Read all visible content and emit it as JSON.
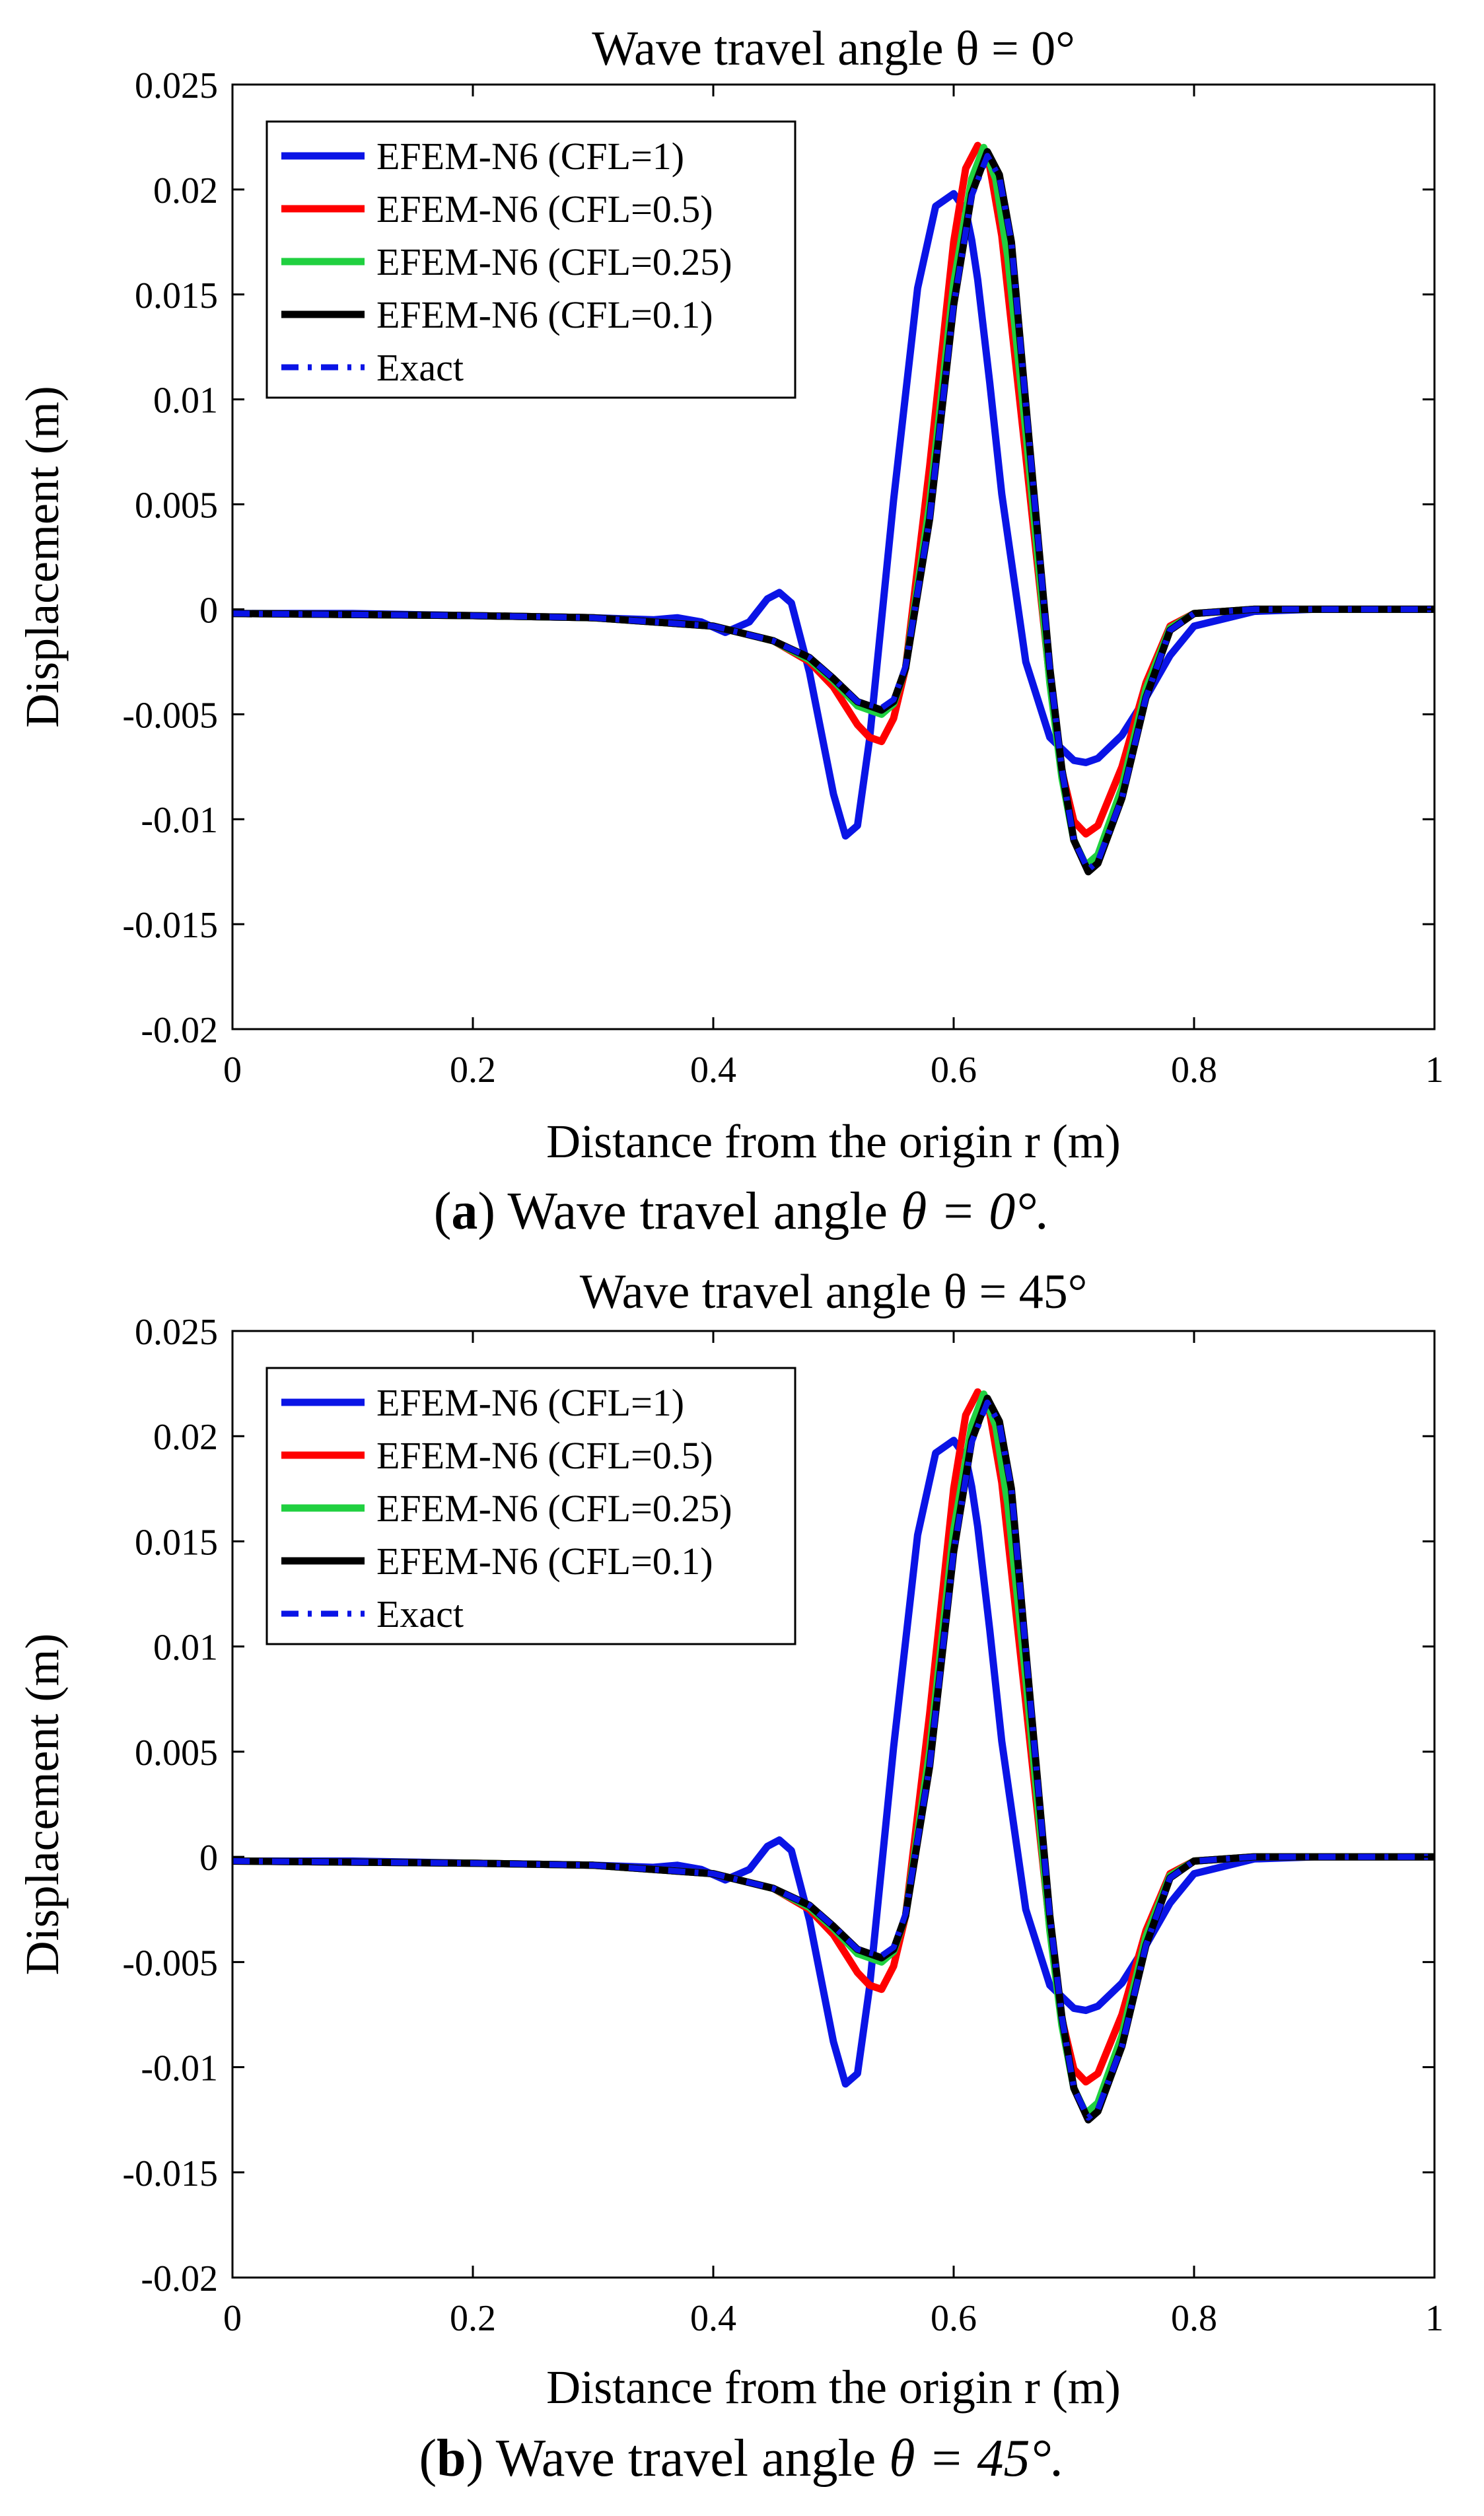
{
  "figure": {
    "captions": [
      {
        "letter": "a",
        "text": "Wave travel angle",
        "formula": "θ = 0°."
      },
      {
        "letter": "b",
        "text": "Wave travel angle",
        "formula": "θ = 45°."
      }
    ]
  },
  "chart_data": [
    {
      "type": "line",
      "title": "Wave travel angle θ = 0°",
      "xlabel": "Distance from the origin r (m)",
      "ylabel": "Displacement (m)",
      "xlim": [
        0,
        1
      ],
      "ylim": [
        -0.02,
        0.025
      ],
      "xticks": [
        0,
        0.2,
        0.4,
        0.6,
        0.8,
        1
      ],
      "xtick_labels": [
        "0",
        "0.2",
        "0.4",
        "0.6",
        "0.8",
        "1"
      ],
      "yticks": [
        -0.02,
        -0.015,
        -0.01,
        -0.005,
        0,
        0.005,
        0.01,
        0.015,
        0.02,
        0.025
      ],
      "ytick_labels": [
        "-0.02",
        "-0.015",
        "-0.01",
        "-0.005",
        "0",
        "0.005",
        "0.01",
        "0.015",
        "0.02",
        "0.025"
      ],
      "legend_position": "top-left",
      "series": [
        {
          "name": "EFEM-N6 (CFL=1)",
          "color": "#0a14e6",
          "style": "solid",
          "x": [
            0,
            0.1,
            0.2,
            0.3,
            0.35,
            0.37,
            0.39,
            0.41,
            0.43,
            0.445,
            0.455,
            0.465,
            0.48,
            0.5,
            0.51,
            0.52,
            0.53,
            0.55,
            0.57,
            0.585,
            0.6,
            0.61,
            0.615,
            0.62,
            0.63,
            0.64,
            0.66,
            0.68,
            0.7,
            0.71,
            0.72,
            0.74,
            0.76,
            0.78,
            0.8,
            0.85,
            0.9,
            1
          ],
          "y": [
            -0.0002,
            -0.0002,
            -0.0003,
            -0.0004,
            -0.0005,
            -0.0004,
            -0.0006,
            -0.0011,
            -0.0006,
            0.0005,
            0.0008,
            0.0003,
            -0.003,
            -0.0088,
            -0.0108,
            -0.0103,
            -0.0062,
            0.0052,
            0.0153,
            0.0192,
            0.0198,
            0.019,
            0.0176,
            0.0157,
            0.0108,
            0.0055,
            -0.0025,
            -0.0061,
            -0.0072,
            -0.0073,
            -0.0071,
            -0.006,
            -0.0042,
            -0.0022,
            -0.0008,
            -0.0001,
            0,
            0
          ]
        },
        {
          "name": "EFEM-N6 (CFL=0.5)",
          "color": "#ff0000",
          "style": "solid",
          "x": [
            0,
            0.2,
            0.3,
            0.4,
            0.45,
            0.48,
            0.5,
            0.52,
            0.53,
            0.54,
            0.55,
            0.56,
            0.58,
            0.6,
            0.61,
            0.62,
            0.63,
            0.64,
            0.66,
            0.68,
            0.69,
            0.7,
            0.71,
            0.72,
            0.74,
            0.76,
            0.78,
            0.8,
            0.85,
            1
          ],
          "y": [
            -0.0002,
            -0.0003,
            -0.0004,
            -0.0008,
            -0.0015,
            -0.0025,
            -0.0037,
            -0.0055,
            -0.0061,
            -0.0063,
            -0.0052,
            -0.0028,
            0.0068,
            0.0175,
            0.021,
            0.0221,
            0.0211,
            0.0178,
            0.0073,
            -0.0034,
            -0.0077,
            -0.0101,
            -0.0107,
            -0.0103,
            -0.0075,
            -0.0035,
            -0.0008,
            -0.0002,
            0,
            0
          ]
        },
        {
          "name": "EFEM-N6 (CFL=0.25)",
          "color": "#20d040",
          "style": "solid",
          "x": [
            0,
            0.2,
            0.3,
            0.4,
            0.45,
            0.48,
            0.5,
            0.52,
            0.54,
            0.55,
            0.56,
            0.58,
            0.6,
            0.615,
            0.625,
            0.635,
            0.645,
            0.66,
            0.68,
            0.69,
            0.7,
            0.71,
            0.72,
            0.74,
            0.76,
            0.78,
            0.8,
            0.85,
            1
          ],
          "y": [
            -0.0002,
            -0.0003,
            -0.0004,
            -0.0008,
            -0.0015,
            -0.0024,
            -0.0034,
            -0.0046,
            -0.005,
            -0.0045,
            -0.0028,
            0.005,
            0.0155,
            0.0205,
            0.022,
            0.0205,
            0.0168,
            0.0085,
            -0.0035,
            -0.008,
            -0.011,
            -0.0122,
            -0.0117,
            -0.0085,
            -0.0038,
            -0.0009,
            -0.0002,
            0,
            0
          ]
        },
        {
          "name": "EFEM-N6 (CFL=0.1)",
          "color": "#000000",
          "style": "solid",
          "x": [
            0,
            0.2,
            0.3,
            0.4,
            0.45,
            0.48,
            0.5,
            0.52,
            0.54,
            0.55,
            0.56,
            0.58,
            0.6,
            0.615,
            0.628,
            0.638,
            0.648,
            0.66,
            0.68,
            0.69,
            0.7,
            0.712,
            0.72,
            0.74,
            0.76,
            0.78,
            0.8,
            0.85,
            1
          ],
          "y": [
            -0.0002,
            -0.0003,
            -0.0004,
            -0.0008,
            -0.0015,
            -0.0023,
            -0.0033,
            -0.0044,
            -0.0048,
            -0.0044,
            -0.0028,
            0.0043,
            0.0145,
            0.0198,
            0.0218,
            0.0207,
            0.0175,
            0.0098,
            -0.0028,
            -0.0076,
            -0.011,
            -0.0125,
            -0.0121,
            -0.009,
            -0.0042,
            -0.001,
            -0.0002,
            0,
            0
          ]
        },
        {
          "name": "Exact",
          "color": "#0a14e6",
          "style": "dashdot",
          "x": [
            0,
            0.2,
            0.3,
            0.4,
            0.45,
            0.48,
            0.5,
            0.52,
            0.54,
            0.55,
            0.56,
            0.58,
            0.6,
            0.615,
            0.628,
            0.638,
            0.648,
            0.66,
            0.68,
            0.69,
            0.7,
            0.712,
            0.72,
            0.74,
            0.76,
            0.78,
            0.8,
            0.85,
            1
          ],
          "y": [
            -0.0002,
            -0.0003,
            -0.0004,
            -0.0008,
            -0.0015,
            -0.0023,
            -0.0033,
            -0.0044,
            -0.0047,
            -0.0043,
            -0.0027,
            0.0043,
            0.0145,
            0.0197,
            0.0216,
            0.0206,
            0.0175,
            0.0098,
            -0.0028,
            -0.0076,
            -0.011,
            -0.0124,
            -0.012,
            -0.009,
            -0.0042,
            -0.001,
            -0.0002,
            0,
            0
          ]
        }
      ]
    },
    {
      "type": "line",
      "title": "Wave travel angle θ = 45°",
      "xlabel": "Distance from the origin r (m)",
      "ylabel": "Displacement (m)",
      "xlim": [
        0,
        1
      ],
      "ylim": [
        -0.02,
        0.025
      ],
      "xticks": [
        0,
        0.2,
        0.4,
        0.6,
        0.8,
        1
      ],
      "xtick_labels": [
        "0",
        "0.2",
        "0.4",
        "0.6",
        "0.8",
        "1"
      ],
      "yticks": [
        -0.02,
        -0.015,
        -0.01,
        -0.005,
        0,
        0.005,
        0.01,
        0.015,
        0.02,
        0.025
      ],
      "ytick_labels": [
        "-0.02",
        "-0.015",
        "-0.01",
        "-0.005",
        "0",
        "0.005",
        "0.01",
        "0.015",
        "0.02",
        "0.025"
      ],
      "legend_position": "top-left",
      "series": [
        {
          "name": "EFEM-N6 (CFL=1)",
          "color": "#0a14e6",
          "style": "solid",
          "x": [
            0,
            0.1,
            0.2,
            0.3,
            0.35,
            0.37,
            0.39,
            0.41,
            0.43,
            0.445,
            0.455,
            0.465,
            0.48,
            0.5,
            0.51,
            0.52,
            0.53,
            0.55,
            0.57,
            0.585,
            0.6,
            0.61,
            0.615,
            0.62,
            0.63,
            0.64,
            0.66,
            0.68,
            0.7,
            0.71,
            0.72,
            0.74,
            0.76,
            0.78,
            0.8,
            0.85,
            0.9,
            1
          ],
          "y": [
            -0.0002,
            -0.0002,
            -0.0003,
            -0.0004,
            -0.0005,
            -0.0004,
            -0.0006,
            -0.0011,
            -0.0006,
            0.0005,
            0.0008,
            0.0003,
            -0.003,
            -0.0088,
            -0.0108,
            -0.0103,
            -0.0062,
            0.0052,
            0.0153,
            0.0192,
            0.0198,
            0.019,
            0.0176,
            0.0157,
            0.0108,
            0.0055,
            -0.0025,
            -0.0061,
            -0.0072,
            -0.0073,
            -0.0071,
            -0.006,
            -0.0042,
            -0.0022,
            -0.0008,
            -0.0001,
            0,
            0
          ]
        },
        {
          "name": "EFEM-N6 (CFL=0.5)",
          "color": "#ff0000",
          "style": "solid",
          "x": [
            0,
            0.2,
            0.3,
            0.4,
            0.45,
            0.48,
            0.5,
            0.52,
            0.53,
            0.54,
            0.55,
            0.56,
            0.58,
            0.6,
            0.61,
            0.62,
            0.63,
            0.64,
            0.66,
            0.68,
            0.69,
            0.7,
            0.71,
            0.72,
            0.74,
            0.76,
            0.78,
            0.8,
            0.85,
            1
          ],
          "y": [
            -0.0002,
            -0.0003,
            -0.0004,
            -0.0008,
            -0.0015,
            -0.0025,
            -0.0037,
            -0.0055,
            -0.0061,
            -0.0063,
            -0.0052,
            -0.0028,
            0.0068,
            0.0175,
            0.021,
            0.0221,
            0.0211,
            0.0178,
            0.0073,
            -0.0034,
            -0.0077,
            -0.0101,
            -0.0107,
            -0.0103,
            -0.0075,
            -0.0035,
            -0.0008,
            -0.0002,
            0,
            0
          ]
        },
        {
          "name": "EFEM-N6 (CFL=0.25)",
          "color": "#20d040",
          "style": "solid",
          "x": [
            0,
            0.2,
            0.3,
            0.4,
            0.45,
            0.48,
            0.5,
            0.52,
            0.54,
            0.55,
            0.56,
            0.58,
            0.6,
            0.615,
            0.625,
            0.635,
            0.645,
            0.66,
            0.68,
            0.69,
            0.7,
            0.71,
            0.72,
            0.74,
            0.76,
            0.78,
            0.8,
            0.85,
            1
          ],
          "y": [
            -0.0002,
            -0.0003,
            -0.0004,
            -0.0008,
            -0.0015,
            -0.0024,
            -0.0034,
            -0.0046,
            -0.005,
            -0.0045,
            -0.0028,
            0.005,
            0.0155,
            0.0205,
            0.022,
            0.0205,
            0.0168,
            0.0085,
            -0.0035,
            -0.008,
            -0.011,
            -0.0122,
            -0.0117,
            -0.0085,
            -0.0038,
            -0.0009,
            -0.0002,
            0,
            0
          ]
        },
        {
          "name": "EFEM-N6 (CFL=0.1)",
          "color": "#000000",
          "style": "solid",
          "x": [
            0,
            0.2,
            0.3,
            0.4,
            0.45,
            0.48,
            0.5,
            0.52,
            0.54,
            0.55,
            0.56,
            0.58,
            0.6,
            0.615,
            0.628,
            0.638,
            0.648,
            0.66,
            0.68,
            0.69,
            0.7,
            0.712,
            0.72,
            0.74,
            0.76,
            0.78,
            0.8,
            0.85,
            1
          ],
          "y": [
            -0.0002,
            -0.0003,
            -0.0004,
            -0.0008,
            -0.0015,
            -0.0023,
            -0.0033,
            -0.0044,
            -0.0048,
            -0.0044,
            -0.0028,
            0.0043,
            0.0145,
            0.0198,
            0.0218,
            0.0207,
            0.0175,
            0.0098,
            -0.0028,
            -0.0076,
            -0.011,
            -0.0125,
            -0.0121,
            -0.009,
            -0.0042,
            -0.001,
            -0.0002,
            0,
            0
          ]
        },
        {
          "name": "Exact",
          "color": "#0a14e6",
          "style": "dashdot",
          "x": [
            0,
            0.2,
            0.3,
            0.4,
            0.45,
            0.48,
            0.5,
            0.52,
            0.54,
            0.55,
            0.56,
            0.58,
            0.6,
            0.615,
            0.628,
            0.638,
            0.648,
            0.66,
            0.68,
            0.69,
            0.7,
            0.712,
            0.72,
            0.74,
            0.76,
            0.78,
            0.8,
            0.85,
            1
          ],
          "y": [
            -0.0002,
            -0.0003,
            -0.0004,
            -0.0008,
            -0.0015,
            -0.0023,
            -0.0033,
            -0.0044,
            -0.0047,
            -0.0043,
            -0.0027,
            0.0043,
            0.0145,
            0.0197,
            0.0216,
            0.0206,
            0.0175,
            0.0098,
            -0.0028,
            -0.0076,
            -0.011,
            -0.0124,
            -0.012,
            -0.009,
            -0.0042,
            -0.001,
            -0.0002,
            0,
            0
          ]
        }
      ]
    }
  ]
}
